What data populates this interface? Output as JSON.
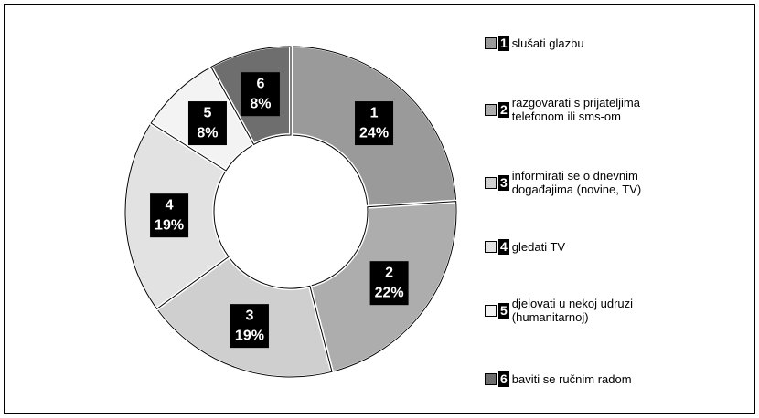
{
  "chart_data": {
    "type": "donut",
    "categories": [
      "slušati glazbu",
      "razgovarati s prijateljima telefonom ili sms-om",
      "informirati se o dnevnim događajima (novine, TV)",
      "gledati TV",
      "djelovati u nekoj udruzi (humanitarnoj)",
      "baviti se ručnim radom"
    ],
    "markers": [
      "1",
      "2",
      "3",
      "4",
      "5",
      "6"
    ],
    "values": [
      24,
      22,
      19,
      19,
      8,
      8
    ],
    "value_labels": [
      "24%",
      "22%",
      "19%",
      "19%",
      "8%",
      "8%"
    ],
    "colors": [
      "#9a9a9a",
      "#adadad",
      "#cfcfcf",
      "#e2e2e2",
      "#f3f3f3",
      "#6e6e6e"
    ],
    "legend": "right"
  }
}
